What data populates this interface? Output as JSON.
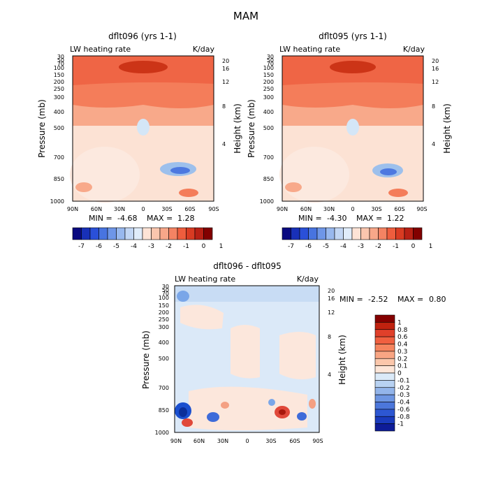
{
  "page": {
    "title": "MAM"
  },
  "chart_data": [
    {
      "type": "heatmap",
      "id": "left",
      "title": "dflt096 (yrs 1-1)",
      "subtitle_left": "LW heating rate",
      "subtitle_right": "K/day",
      "ylabel": "Pressure (mb)",
      "ylabel_right": "Height (km)",
      "xticks": [
        "90N",
        "60N",
        "30N",
        "0",
        "30S",
        "60S",
        "90S"
      ],
      "yticks": [
        "30",
        "50",
        "70",
        "100",
        "150",
        "200",
        "250",
        "300",
        "400",
        "500",
        "700",
        "850",
        "1000"
      ],
      "right_ticks": [
        "20",
        "16",
        "12",
        "8",
        "4"
      ],
      "min_label": "MIN =",
      "min_value": "-4.68",
      "max_label": "MAX =",
      "max_value": "1.28",
      "colorbar_labels": [
        "-7",
        "-6",
        "-5",
        "-4",
        "-3",
        "-2",
        "-1",
        "0",
        "1"
      ]
    },
    {
      "type": "heatmap",
      "id": "right",
      "title": "dflt095 (yrs 1-1)",
      "subtitle_left": "LW heating rate",
      "subtitle_right": "K/day",
      "ylabel": "Pressure (mb)",
      "ylabel_right": "Height (km)",
      "xticks": [
        "90N",
        "60N",
        "30N",
        "0",
        "30S",
        "60S",
        "90S"
      ],
      "yticks": [
        "30",
        "50",
        "70",
        "100",
        "150",
        "200",
        "250",
        "300",
        "400",
        "500",
        "700",
        "850",
        "1000"
      ],
      "right_ticks": [
        "20",
        "16",
        "12",
        "8",
        "4"
      ],
      "min_label": "MIN =",
      "min_value": "-4.30",
      "max_label": "MAX =",
      "max_value": "1.22",
      "colorbar_labels": [
        "-7",
        "-6",
        "-5",
        "-4",
        "-3",
        "-2",
        "-1",
        "0",
        "1"
      ]
    },
    {
      "type": "heatmap",
      "id": "diff",
      "title": "dflt096 - dflt095",
      "subtitle_left": "LW heating rate",
      "subtitle_right": "K/day",
      "ylabel": "Pressure (mb)",
      "ylabel_right": "Height (km)",
      "xticks": [
        "90N",
        "60N",
        "30N",
        "0",
        "30S",
        "60S",
        "90S"
      ],
      "yticks": [
        "30",
        "50",
        "70",
        "100",
        "150",
        "200",
        "250",
        "300",
        "400",
        "500",
        "700",
        "850",
        "1000"
      ],
      "right_ticks": [
        "20",
        "16",
        "12",
        "8",
        "4"
      ],
      "min_label": "MIN =",
      "min_value": "-2.52",
      "max_label": "MAX =",
      "max_value": "0.80",
      "colorbar_labels": [
        "1",
        "0.8",
        "0.6",
        "0.4",
        "0.3",
        "0.2",
        "0.1",
        "0",
        "-0.1",
        "-0.2",
        "-0.3",
        "-0.4",
        "-0.6",
        "-0.8",
        "-1"
      ]
    }
  ]
}
